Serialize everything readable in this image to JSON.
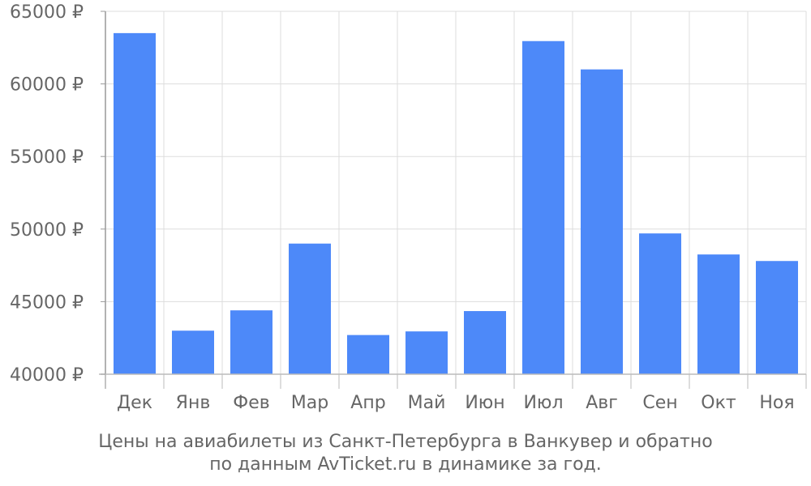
{
  "chart_data": {
    "type": "bar",
    "categories": [
      "Дек",
      "Янв",
      "Фев",
      "Мар",
      "Апр",
      "Май",
      "Июн",
      "Июл",
      "Авг",
      "Сен",
      "Окт",
      "Ноя"
    ],
    "values": [
      63500,
      43000,
      44400,
      49000,
      42700,
      42950,
      44350,
      62950,
      61000,
      49700,
      48250,
      47800
    ],
    "ylim": [
      40000,
      65000
    ],
    "yticks": [
      40000,
      45000,
      50000,
      55000,
      60000,
      65000
    ],
    "ytick_labels": [
      "40000 ₽",
      "45000 ₽",
      "50000 ₽",
      "55000 ₽",
      "60000 ₽",
      "65000 ₽"
    ],
    "grid": true,
    "legend": "none",
    "bar_color": "#4d89f9",
    "caption_lines": [
      "Цены на авиабилеты из Санкт-Петербурга в Ванкувер и обратно",
      "по данным AvTicket.ru в динамике за год."
    ]
  }
}
